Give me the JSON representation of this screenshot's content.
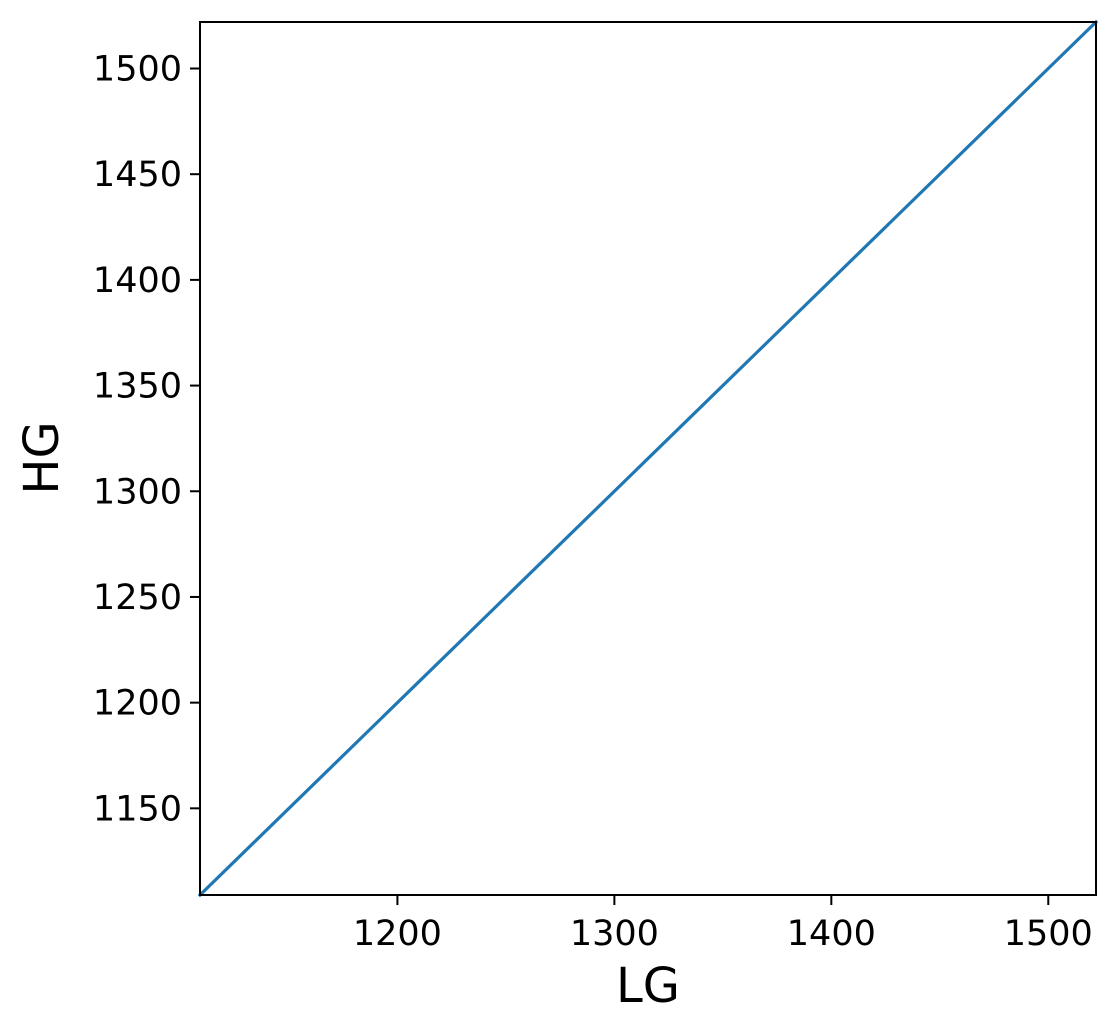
{
  "chart_data": {
    "type": "line",
    "xlabel": "LG",
    "ylabel": "HG",
    "xlim": [
      1109,
      1522
    ],
    "ylim": [
      1109,
      1522
    ],
    "xticks": [
      1200,
      1300,
      1400,
      1500
    ],
    "yticks": [
      1150,
      1200,
      1250,
      1300,
      1350,
      1400,
      1450,
      1500
    ],
    "grid": false,
    "series": [
      {
        "x": [
          1109,
          1522
        ],
        "y": [
          1109,
          1522
        ],
        "color": "#1f77b4"
      }
    ]
  }
}
